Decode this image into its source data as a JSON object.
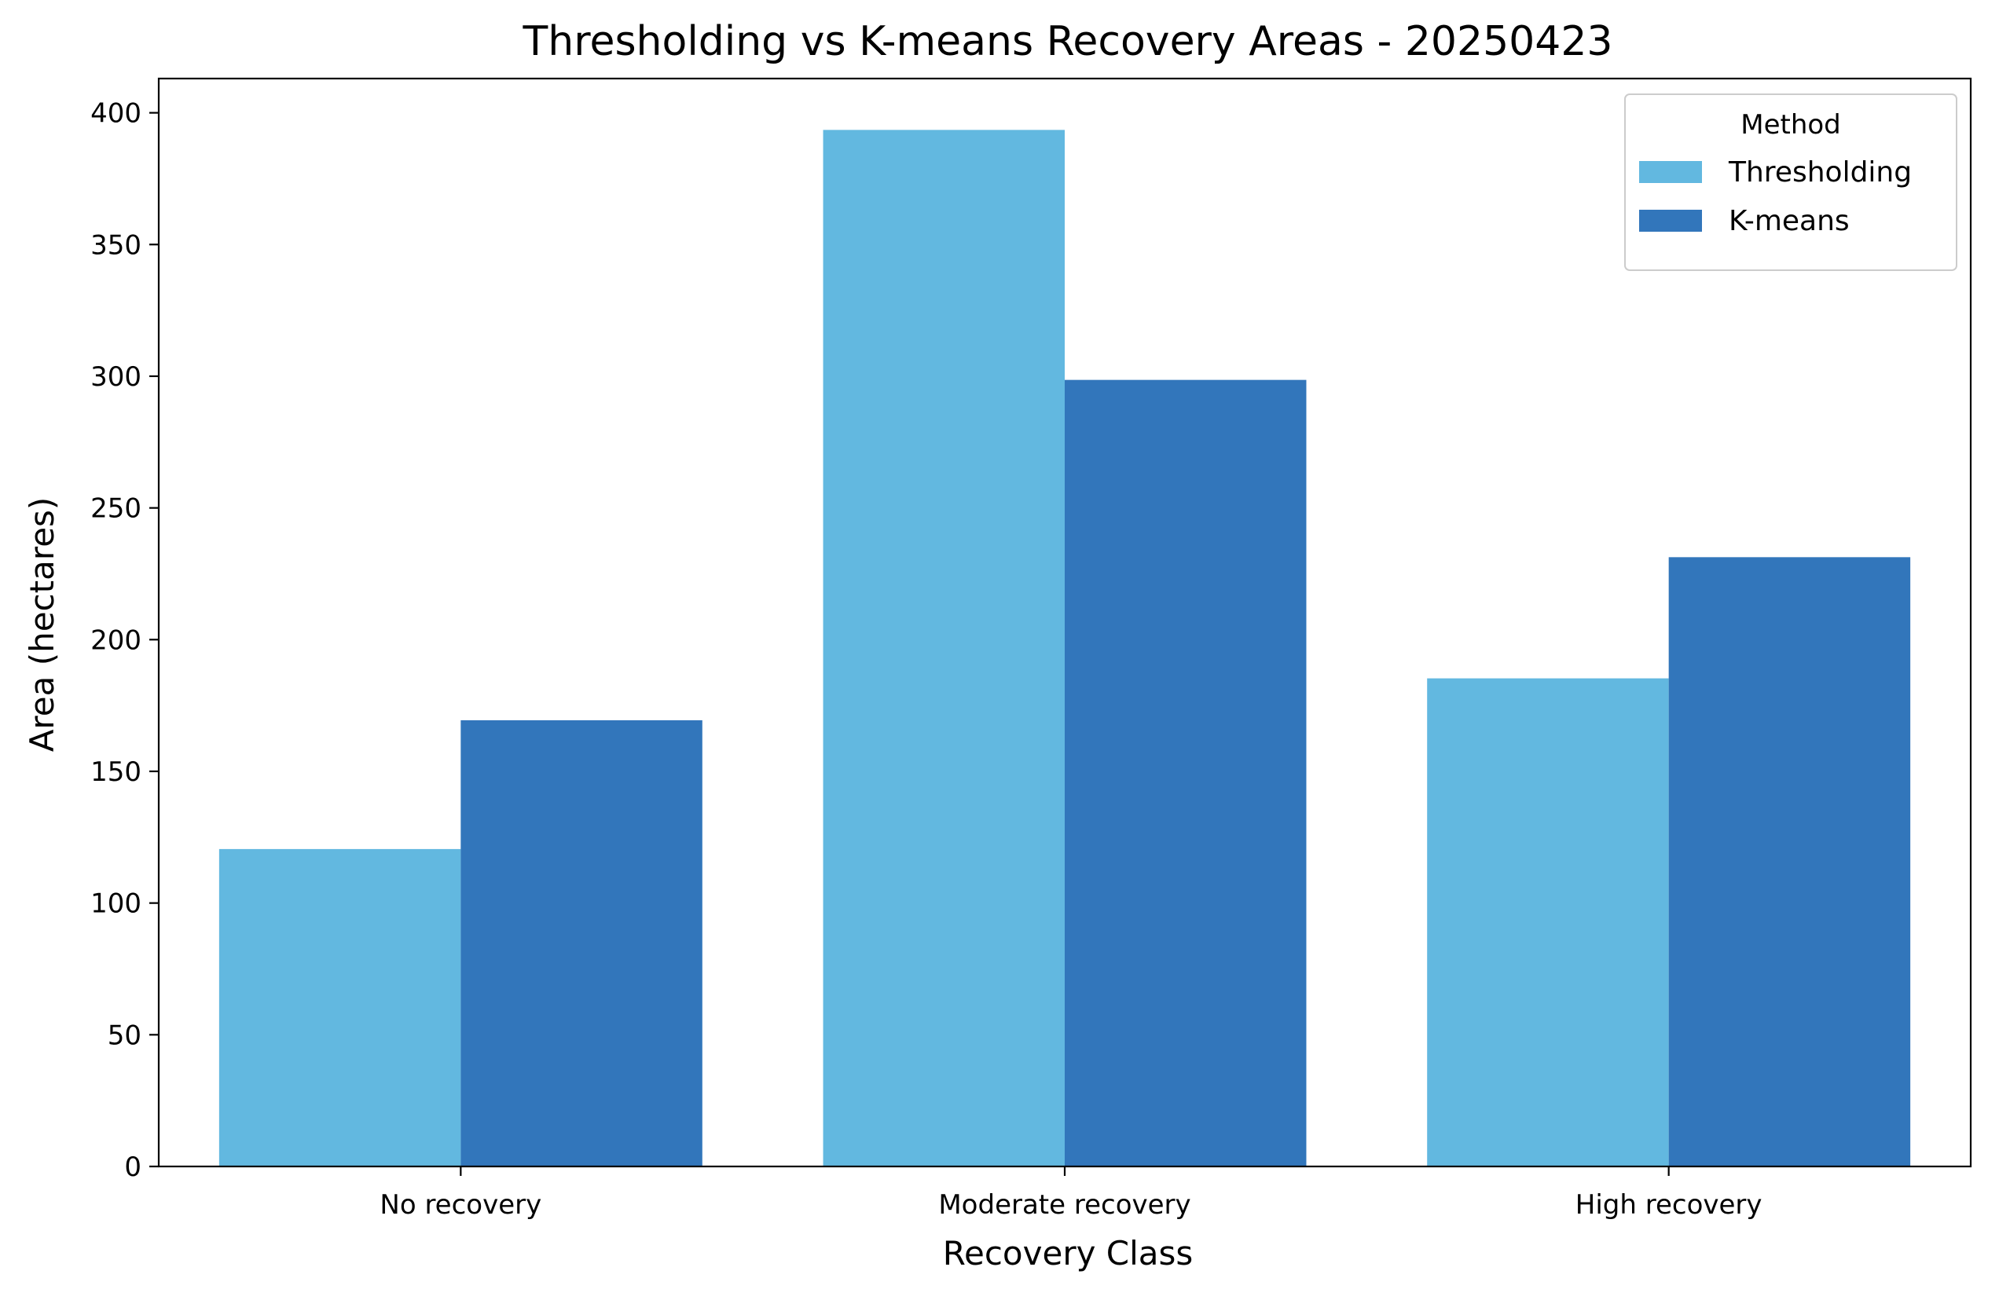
{
  "chart_data": {
    "type": "bar",
    "title": "Thresholding vs K-means Recovery Areas - 20250423",
    "xlabel": "Recovery Class",
    "ylabel": "Area (hectares)",
    "categories": [
      "No recovery",
      "Moderate recovery",
      "High recovery"
    ],
    "series": [
      {
        "name": "Thresholding",
        "values": [
          120.5,
          393.5,
          185.3
        ],
        "color": "#62B8E0"
      },
      {
        "name": "K-means",
        "values": [
          169.4,
          298.6,
          231.3
        ],
        "color": "#3276BB"
      }
    ],
    "ylim": [
      0,
      413
    ],
    "yticks": [
      0,
      50,
      100,
      150,
      200,
      250,
      300,
      350,
      400
    ],
    "grid": false,
    "legend": {
      "title": "Method",
      "placement": "top-right"
    }
  }
}
